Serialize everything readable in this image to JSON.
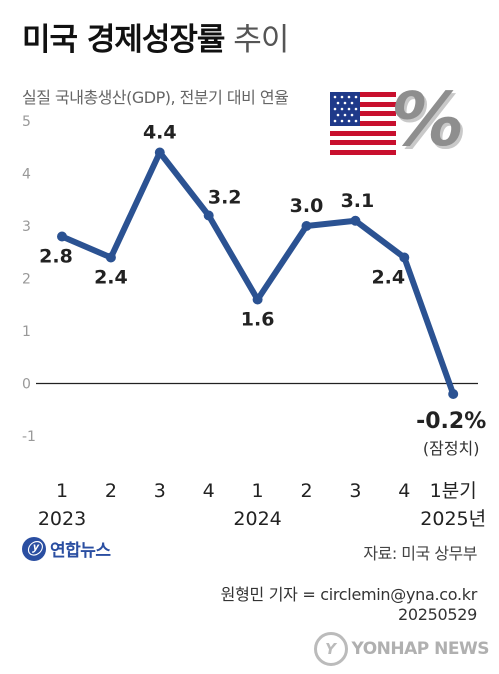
{
  "title": {
    "main": "미국 경제성장률",
    "sub": "추이"
  },
  "subtitle": "실질 국내총생산(GDP), 전분기 대비 연율",
  "chart_data": {
    "type": "line",
    "categories": [
      "1",
      "2",
      "3",
      "4",
      "1",
      "2",
      "3",
      "4",
      "1분기"
    ],
    "year_labels": [
      {
        "label": "2023",
        "at": 1
      },
      {
        "label": "2024",
        "at": 5
      },
      {
        "label": "2025년",
        "at": 9
      }
    ],
    "values": [
      2.8,
      2.4,
      4.4,
      3.2,
      1.6,
      3.0,
      3.1,
      2.4,
      -0.2
    ],
    "data_labels": [
      "2.8",
      "2.4",
      "4.4",
      "3.2",
      "1.6",
      "3.0",
      "3.1",
      "2.4",
      "-0.2%"
    ],
    "last_point_note": "(잠정치)",
    "ylim": [
      -1,
      5
    ],
    "yticks": [
      "-1",
      "0",
      "1",
      "2",
      "3",
      "4",
      "5"
    ],
    "grid": false,
    "line_color": "#2b5292"
  },
  "source": "자료: 미국 상무부",
  "reporter": "원형민 기자 = circlemin@yna.co.kr",
  "date": "20250529",
  "logo_text": "연합뉴스",
  "watermark_text": "YONHAP NEWS"
}
